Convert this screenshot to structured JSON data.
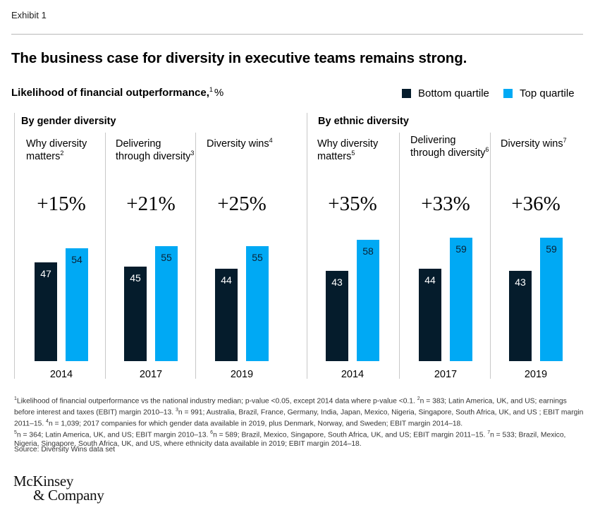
{
  "header": {
    "exhibit": "Exhibit 1",
    "title": "The business case for diversity in executive teams remains strong.",
    "subtitle": "Likelihood of financial outperformance,",
    "subtitle_sup": "1",
    "subtitle_unit": "%"
  },
  "legend": [
    {
      "label": "Bottom quartile",
      "color": "#051C2C"
    },
    {
      "label": "Top quartile",
      "color": "#00A9F4"
    }
  ],
  "groups": [
    "By gender diversity",
    "By ethnic diversity"
  ],
  "panels": [
    {
      "title": "Why diversity matters",
      "sup": "2",
      "pct": "+15%",
      "year": "2014",
      "bottom_label": "47",
      "top_label": "54"
    },
    {
      "title": "Delivering through diversity",
      "sup": "3",
      "pct": "+21%",
      "year": "2017",
      "bottom_label": "45",
      "top_label": "55"
    },
    {
      "title": "Diversity wins",
      "sup": "4",
      "pct": "+25%",
      "year": "2019",
      "bottom_label": "44",
      "top_label": "55"
    },
    {
      "title": "Why diversity matters",
      "sup": "5",
      "pct": "+35%",
      "year": "2014",
      "bottom_label": "43",
      "top_label": "58"
    },
    {
      "title": "Delivering through diversity",
      "sup": "6",
      "pct": "+33%",
      "year": "2017",
      "bottom_label": "44",
      "top_label": "59"
    },
    {
      "title": "Diversity wins",
      "sup": "7",
      "pct": "+36%",
      "year": "2019",
      "bottom_label": "43",
      "top_label": "59"
    }
  ],
  "chart_data": {
    "type": "bar",
    "ylabel": "Likelihood of financial outperformance, %",
    "categories": [
      "2014",
      "2017",
      "2019",
      "2014",
      "2017",
      "2019"
    ],
    "groups": [
      "By gender diversity",
      "By gender diversity",
      "By gender diversity",
      "By ethnic diversity",
      "By ethnic diversity",
      "By ethnic diversity"
    ],
    "series": [
      {
        "name": "Bottom quartile",
        "values": [
          47,
          45,
          44,
          43,
          44,
          43
        ]
      },
      {
        "name": "Top quartile",
        "values": [
          54,
          55,
          55,
          58,
          59,
          59
        ]
      }
    ],
    "annotations": [
      "+15%",
      "+21%",
      "+25%",
      "+35%",
      "+33%",
      "+36%"
    ]
  },
  "footnotes": {
    "line1": "Likelihood of financial outperformance vs the national industry median; p-value <0.05, except 2014 data where p-value <0.1. ",
    "n2": "n = 383; Latin America, UK, and US; earnings before interest and taxes (EBIT) margin 2010–13. ",
    "n3": "n = 991; Australia, Brazil, France, Germany, India, Japan, Mexico, Nigeria, Singapore, South Africa, UK, and US ; EBIT margin 2011–15. ",
    "n4": "n = 1,039; 2017 companies for which gender data available in 2019, plus Denmark, Norway, and Sweden;  EBIT margin 2014–18.",
    "n5": "n = 364; Latin America, UK, and US; EBIT margin 2010–13. ",
    "n6": "n = 589; Brazil, Mexico, Singapore, South Africa, UK, and US; EBIT margin 2011–15. ",
    "n7": "n = 533; Brazil, Mexico, Nigeria, Singapore, South Africa, UK, and US, where ethnicity data available in 2019; EBIT margin 2014–18.",
    "source": "Source: Diversity Wins data set"
  },
  "logo": {
    "line1": "McKinsey",
    "line2": "& Company"
  }
}
